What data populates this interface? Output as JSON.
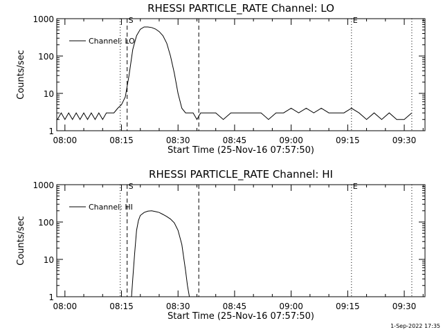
{
  "chart_data": [
    {
      "type": "line",
      "title": "RHESSI PARTICLE_RATE Channel: LO",
      "xlabel": "Start Time (25-Nov-16 07:57:50)",
      "ylabel": "Counts/sec",
      "yscale": "log",
      "ylim": [
        1,
        1000
      ],
      "xlim": [
        "07:57:50",
        "09:35:30"
      ],
      "x_tick_labels": [
        "08:00",
        "08:15",
        "08:30",
        "08:45",
        "09:00",
        "09:15",
        "09:30"
      ],
      "y_tick_labels": [
        "1",
        "10",
        "100",
        "1000"
      ],
      "legend": {
        "position": "top-left",
        "entries": [
          "Channel: LO"
        ]
      },
      "markers": [
        {
          "label": "S",
          "time": "08:16:30",
          "style": "dashed"
        },
        {
          "label": "",
          "time": "08:35:30",
          "style": "dashed"
        },
        {
          "label": "E",
          "time": "09:16:00",
          "style": "dotted"
        },
        {
          "label": "",
          "time": "08:14:40",
          "style": "dotted"
        },
        {
          "label": "",
          "time": "09:32:00",
          "style": "dotted"
        }
      ],
      "series": [
        {
          "name": "Channel: LO",
          "x": [
            "07:58:00",
            "07:59:00",
            "08:00:00",
            "08:01:00",
            "08:02:00",
            "08:03:00",
            "08:04:00",
            "08:05:00",
            "08:06:00",
            "08:07:00",
            "08:08:00",
            "08:09:00",
            "08:10:00",
            "08:11:00",
            "08:12:00",
            "08:13:00",
            "08:14:00",
            "08:15:00",
            "08:16:00",
            "08:17:00",
            "08:18:00",
            "08:19:00",
            "08:20:00",
            "08:21:00",
            "08:22:00",
            "08:23:00",
            "08:24:00",
            "08:25:00",
            "08:26:00",
            "08:27:00",
            "08:28:00",
            "08:29:00",
            "08:30:00",
            "08:31:00",
            "08:32:00",
            "08:33:00",
            "08:34:00",
            "08:35:00",
            "08:36:00",
            "08:38:00",
            "08:40:00",
            "08:42:00",
            "08:44:00",
            "08:46:00",
            "08:48:00",
            "08:50:00",
            "08:52:00",
            "08:54:00",
            "08:56:00",
            "08:58:00",
            "09:00:00",
            "09:02:00",
            "09:04:00",
            "09:06:00",
            "09:08:00",
            "09:10:00",
            "09:12:00",
            "09:14:00",
            "09:16:00",
            "09:18:00",
            "09:20:00",
            "09:22:00",
            "09:24:00",
            "09:26:00",
            "09:28:00",
            "09:30:00",
            "09:32:00"
          ],
          "values": [
            2,
            3,
            2,
            3,
            2,
            3,
            2,
            3,
            2,
            3,
            2,
            3,
            2,
            3,
            3,
            3,
            4,
            5,
            8,
            30,
            150,
            350,
            520,
            600,
            600,
            580,
            530,
            450,
            350,
            220,
            100,
            35,
            10,
            4,
            3,
            3,
            3,
            2,
            3,
            3,
            3,
            2,
            3,
            3,
            3,
            3,
            3,
            2,
            3,
            3,
            4,
            3,
            4,
            3,
            4,
            3,
            3,
            3,
            4,
            3,
            2,
            3,
            2,
            3,
            2,
            2,
            3
          ]
        }
      ]
    },
    {
      "type": "line",
      "title": "RHESSI PARTICLE_RATE Channel: HI",
      "xlabel": "Start Time (25-Nov-16 07:57:50)",
      "ylabel": "Counts/sec",
      "yscale": "log",
      "ylim": [
        1,
        1000
      ],
      "xlim": [
        "07:57:50",
        "09:35:30"
      ],
      "x_tick_labels": [
        "08:00",
        "08:15",
        "08:30",
        "08:45",
        "09:00",
        "09:15",
        "09:30"
      ],
      "y_tick_labels": [
        "1",
        "10",
        "100",
        "1000"
      ],
      "legend": {
        "position": "top-left",
        "entries": [
          "Channel: HI"
        ]
      },
      "markers": [
        {
          "label": "S",
          "time": "08:16:30",
          "style": "dashed"
        },
        {
          "label": "",
          "time": "08:35:30",
          "style": "dashed"
        },
        {
          "label": "E",
          "time": "09:16:00",
          "style": "dotted"
        },
        {
          "label": "",
          "time": "08:14:40",
          "style": "dotted"
        },
        {
          "label": "",
          "time": "09:32:00",
          "style": "dotted"
        }
      ],
      "series": [
        {
          "name": "Channel: HI",
          "x": [
            "08:17:40",
            "08:18:00",
            "08:18:30",
            "08:19:00",
            "08:19:30",
            "08:20:00",
            "08:21:00",
            "08:22:00",
            "08:23:00",
            "08:24:00",
            "08:25:00",
            "08:26:00",
            "08:27:00",
            "08:28:00",
            "08:29:00",
            "08:30:00",
            "08:31:00",
            "08:32:00",
            "08:32:30",
            "08:33:00"
          ],
          "values": [
            1,
            3,
            15,
            60,
            110,
            150,
            180,
            195,
            200,
            190,
            180,
            160,
            140,
            120,
            95,
            60,
            25,
            5,
            2,
            1
          ]
        }
      ]
    }
  ],
  "footer": {
    "timestamp": "1-Sep-2022 17:35"
  }
}
